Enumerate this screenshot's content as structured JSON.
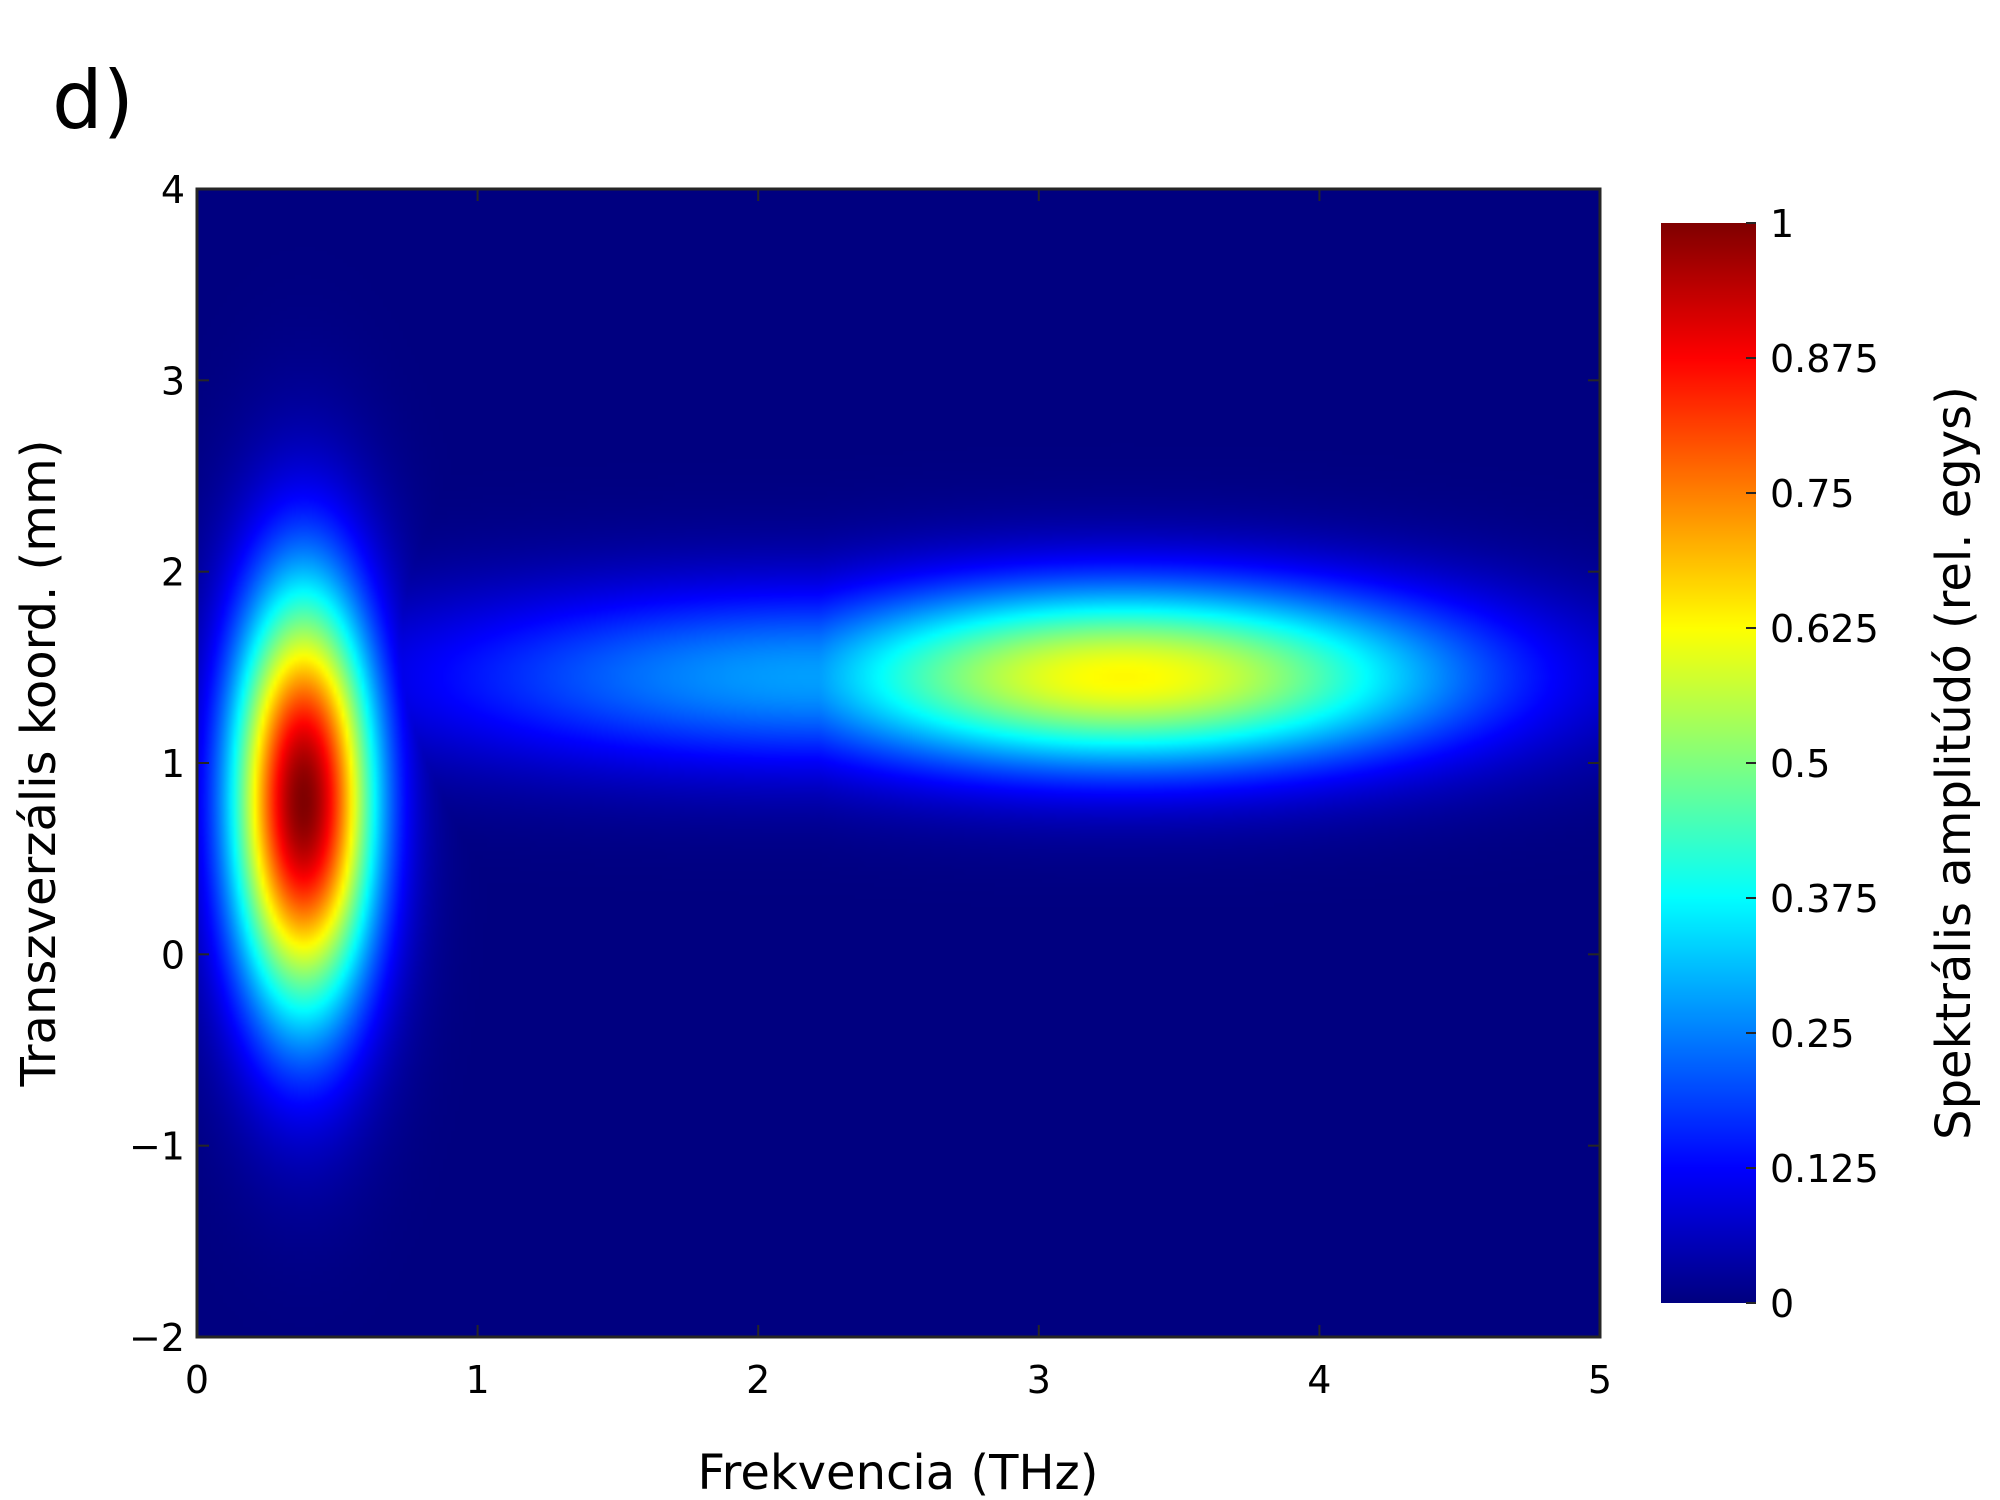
{
  "panel_label": "d)",
  "chart_data": {
    "type": "heatmap",
    "colormap": "jet",
    "xlabel": "Frekvencia (THz)",
    "ylabel": "Transzverzális koord. (mm)",
    "colorbar_label": "Spektrális amplitúdó (rel. egys)",
    "xlim": [
      0,
      5
    ],
    "ylim": [
      -2,
      4
    ],
    "clim": [
      0,
      1
    ],
    "x_ticks": [
      0,
      1,
      2,
      3,
      4,
      5
    ],
    "x_tick_labels": [
      "0",
      "1",
      "2",
      "3",
      "4",
      "5"
    ],
    "y_ticks": [
      -2,
      -1,
      0,
      1,
      2,
      3,
      4
    ],
    "y_tick_labels": [
      "−2",
      "−1",
      "0",
      "1",
      "2",
      "3",
      "4"
    ],
    "colorbar_ticks": [
      0,
      0.125,
      0.25,
      0.375,
      0.5,
      0.625,
      0.75,
      0.875,
      1
    ],
    "colorbar_tick_labels": [
      "0",
      "0.125",
      "0.25",
      "0.375",
      "0.5",
      "0.625",
      "0.75",
      "0.875",
      "1"
    ],
    "features": [
      {
        "center_x": 0.38,
        "center_y": 0.8,
        "sigma_x": 0.18,
        "sigma_y": 0.78,
        "peak": 1.0
      },
      {
        "center_x": 3.3,
        "center_y": 1.45,
        "sigma_x": 0.85,
        "sigma_y": 0.34,
        "peak": 0.63
      },
      {
        "center_x": 2.2,
        "center_y": 1.45,
        "sigma_x": 1.05,
        "sigma_y": 0.34,
        "peak": 0.28
      }
    ]
  }
}
